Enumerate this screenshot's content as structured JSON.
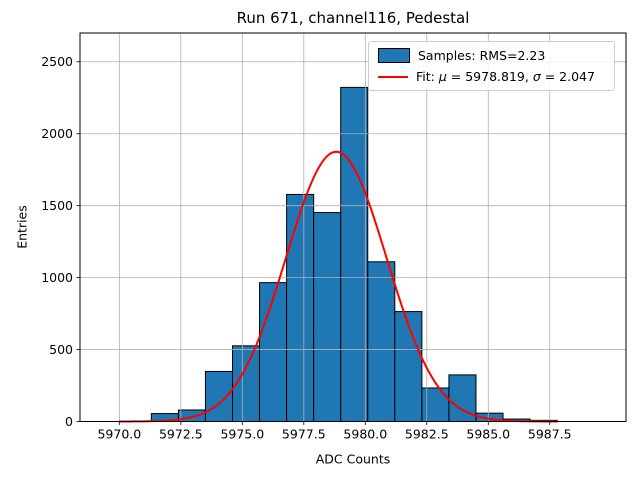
{
  "chart_data": {
    "type": "bar",
    "subtype": "histogram-with-gaussian-fit",
    "title": "Run 671, channel116, Pedestal",
    "xlabel": "ADC Counts",
    "ylabel": "Entries",
    "xlim": [
      5968.4,
      5990.6
    ],
    "ylim": [
      0,
      2700
    ],
    "xticks": [
      5970.0,
      5972.5,
      5975.0,
      5977.5,
      5980.0,
      5982.5,
      5985.0,
      5987.5
    ],
    "yticks": [
      0,
      500,
      1000,
      1500,
      2000,
      2500
    ],
    "grid": true,
    "grid_over_bars": true,
    "bin_edges": [
      5971.3,
      5972.4,
      5973.5,
      5974.6,
      5975.7,
      5976.8,
      5977.9,
      5979.0,
      5980.1,
      5981.2,
      5982.3,
      5983.4,
      5984.5,
      5985.6,
      5986.7,
      5987.8
    ],
    "counts": [
      55,
      80,
      348,
      526,
      965,
      1578,
      1452,
      2322,
      1110,
      764,
      233,
      324,
      58,
      17,
      8
    ],
    "fit": {
      "mu": 5978.819,
      "sigma": 2.047,
      "amplitude": 1875,
      "x_start": 5970.0,
      "x_end": 5987.8
    },
    "colors": {
      "bar_fill": "#1f77b4",
      "bar_edge": "#000000",
      "fit_line": "#ff0000",
      "grid": "#b0b0b0",
      "spine": "#000000",
      "text": "#000000"
    },
    "legend": {
      "position": "upper-right",
      "entries": [
        {
          "marker": "patch",
          "label": "Samples: RMS=2.23"
        },
        {
          "marker": "line",
          "label": "Fit: μ = 5978.819, σ = 2.047"
        }
      ]
    }
  }
}
